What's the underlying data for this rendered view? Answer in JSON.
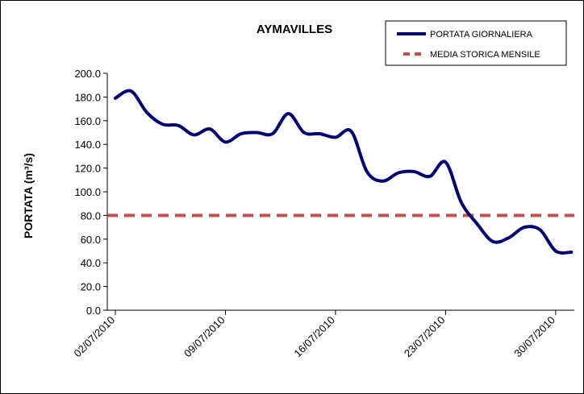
{
  "chart_data": {
    "type": "line",
    "title": "AYMAVILLES",
    "ylabel": "PORTATA (m³/s)",
    "xlabel": "",
    "ylim": [
      0,
      200
    ],
    "ytick_labels": [
      "0.0",
      "20.0",
      "40.0",
      "60.0",
      "80.0",
      "100.0",
      "120.0",
      "140.0",
      "160.0",
      "180.0",
      "200.0"
    ],
    "xtick_labels": [
      "02/07/2010",
      "09/07/2010",
      "16/07/2010",
      "23/07/2010",
      "30/07/2010"
    ],
    "grid": false,
    "legend_position": "top-right",
    "series": [
      {
        "name": "PORTATA GIORNALIERA",
        "color": "#00006e",
        "style": "solid",
        "x": [
          "02/07/2010",
          "03/07/2010",
          "04/07/2010",
          "05/07/2010",
          "06/07/2010",
          "07/07/2010",
          "08/07/2010",
          "09/07/2010",
          "10/07/2010",
          "11/07/2010",
          "12/07/2010",
          "13/07/2010",
          "14/07/2010",
          "15/07/2010",
          "16/07/2010",
          "17/07/2010",
          "18/07/2010",
          "19/07/2010",
          "20/07/2010",
          "21/07/2010",
          "22/07/2010",
          "23/07/2010",
          "24/07/2010",
          "25/07/2010",
          "26/07/2010",
          "27/07/2010",
          "28/07/2010",
          "29/07/2010",
          "30/07/2010",
          "31/07/2010"
        ],
        "values": [
          179,
          185,
          167,
          157,
          156,
          148,
          153,
          142,
          149,
          150,
          149,
          166,
          150,
          149,
          146,
          151,
          117,
          109,
          116,
          117,
          113,
          125,
          91,
          73,
          58,
          61,
          70,
          68,
          50,
          49
        ]
      },
      {
        "name": "MEDIA STORICA MENSILE",
        "color": "#c0504d",
        "style": "dashed",
        "x": [
          "02/07/2010",
          "31/07/2010"
        ],
        "values": [
          80,
          80
        ]
      }
    ]
  }
}
